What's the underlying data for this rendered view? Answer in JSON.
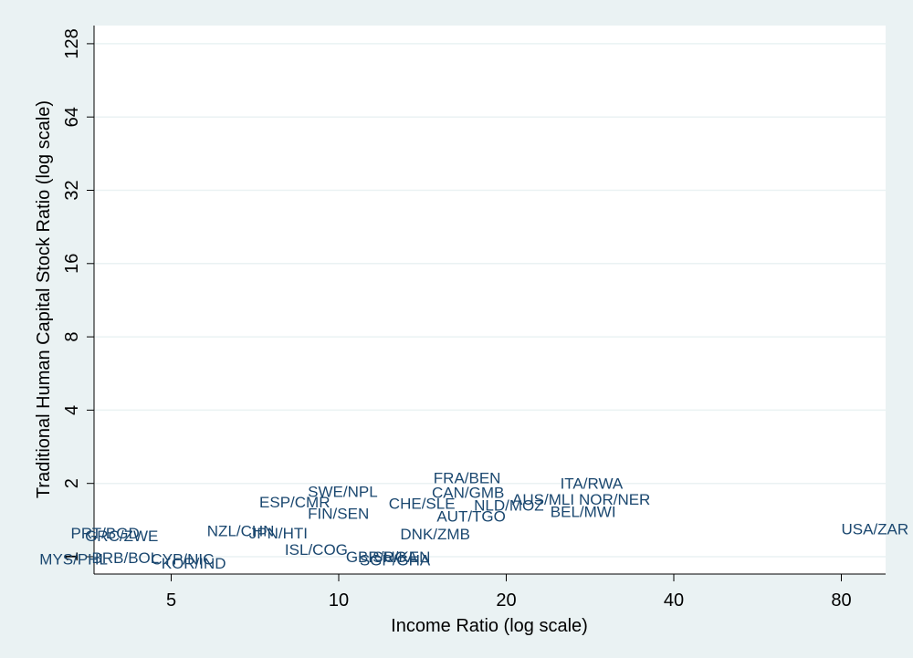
{
  "chart_data": {
    "type": "scatter",
    "xlabel": "Income Ratio (log scale)",
    "ylabel": "Traditional Human Capital Stock Ratio (log scale)",
    "x_scale": "log",
    "y_scale": "log",
    "xlim": [
      3,
      105
    ],
    "ylim": [
      0.93,
      150
    ],
    "x_ticks": [
      5,
      10,
      20,
      40,
      80
    ],
    "y_ticks": [
      1,
      2,
      4,
      8,
      16,
      32,
      64,
      128
    ],
    "grid": "horizontal",
    "colors": {
      "label": "#1a476f",
      "grid": "#eaf2f3",
      "outer_background": "#eaf2f3",
      "plot_background": "#ffffff",
      "axis": "#000000"
    },
    "points": [
      {
        "label": "MYS/PHL",
        "x": 2.9,
        "y": 0.98
      },
      {
        "label": "BRB/BOL",
        "x": 3.6,
        "y": 0.99
      },
      {
        "label": "PRT/BGD",
        "x": 3.3,
        "y": 1.25
      },
      {
        "label": "GRC/ZWE",
        "x": 3.5,
        "y": 1.22
      },
      {
        "label": "CYP/NIC",
        "x": 4.6,
        "y": 0.98
      },
      {
        "label": "KOR/IND",
        "x": 4.8,
        "y": 0.94
      },
      {
        "label": "NZL/CHN",
        "x": 5.8,
        "y": 1.28
      },
      {
        "label": "JPN/HTI",
        "x": 6.9,
        "y": 1.25
      },
      {
        "label": "ESP/CMR",
        "x": 7.2,
        "y": 1.68
      },
      {
        "label": "SWE/NPL",
        "x": 8.8,
        "y": 1.85
      },
      {
        "label": "FIN/SEN",
        "x": 8.8,
        "y": 1.51
      },
      {
        "label": "ISL/COG",
        "x": 8.0,
        "y": 1.07
      },
      {
        "label": "GBR/UGA",
        "x": 10.3,
        "y": 1.0
      },
      {
        "label": "ISR/KEN",
        "x": 11.3,
        "y": 1.0
      },
      {
        "label": "SGP/GHA",
        "x": 10.9,
        "y": 0.97
      },
      {
        "label": "CHE/SLE",
        "x": 12.3,
        "y": 1.66
      },
      {
        "label": "FRA/BEN",
        "x": 14.8,
        "y": 2.11
      },
      {
        "label": "CAN/GMB",
        "x": 14.7,
        "y": 1.84
      },
      {
        "label": "DNK/ZMB",
        "x": 12.9,
        "y": 1.24
      },
      {
        "label": "AUT/TGO",
        "x": 15.0,
        "y": 1.47
      },
      {
        "label": "NLD/MOZ",
        "x": 17.5,
        "y": 1.63
      },
      {
        "label": "AUS/MLI",
        "x": 20.5,
        "y": 1.72
      },
      {
        "label": "ITA/RWA",
        "x": 25.0,
        "y": 2.0
      },
      {
        "label": "NOR/NER",
        "x": 27.0,
        "y": 1.72
      },
      {
        "label": "BEL/MWI",
        "x": 24.0,
        "y": 1.53
      },
      {
        "label": "USA/ZAR",
        "x": 80.0,
        "y": 1.3
      }
    ]
  }
}
